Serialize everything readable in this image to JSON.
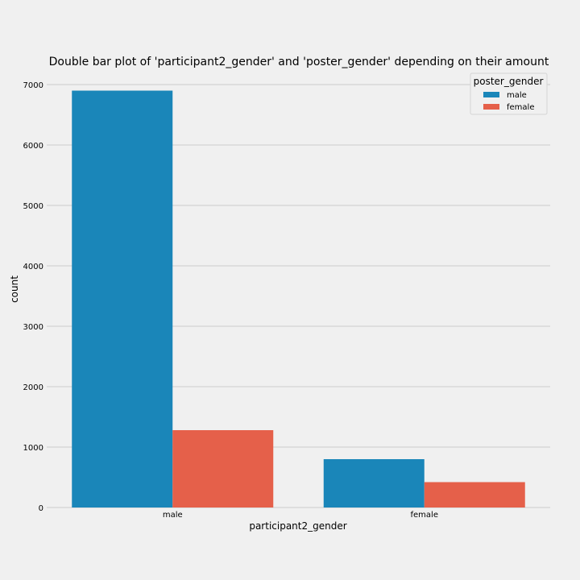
{
  "chart_data": {
    "type": "bar",
    "title": "Double bar plot of 'participant2_gender' and 'poster_gender' depending on their amount",
    "xlabel": "participant2_gender",
    "ylabel": "count",
    "categories": [
      "male",
      "female"
    ],
    "series": [
      {
        "name": "male",
        "color": "#1a86b9",
        "values": [
          6900,
          800
        ]
      },
      {
        "name": "female",
        "color": "#e5604a",
        "values": [
          1280,
          420
        ]
      }
    ],
    "ylim": [
      0,
      7000
    ],
    "yticks": [
      0,
      1000,
      2000,
      3000,
      4000,
      5000,
      6000,
      7000
    ],
    "grid": "horizontal",
    "legend": {
      "title": "poster_gender",
      "placement": "top-right"
    }
  }
}
